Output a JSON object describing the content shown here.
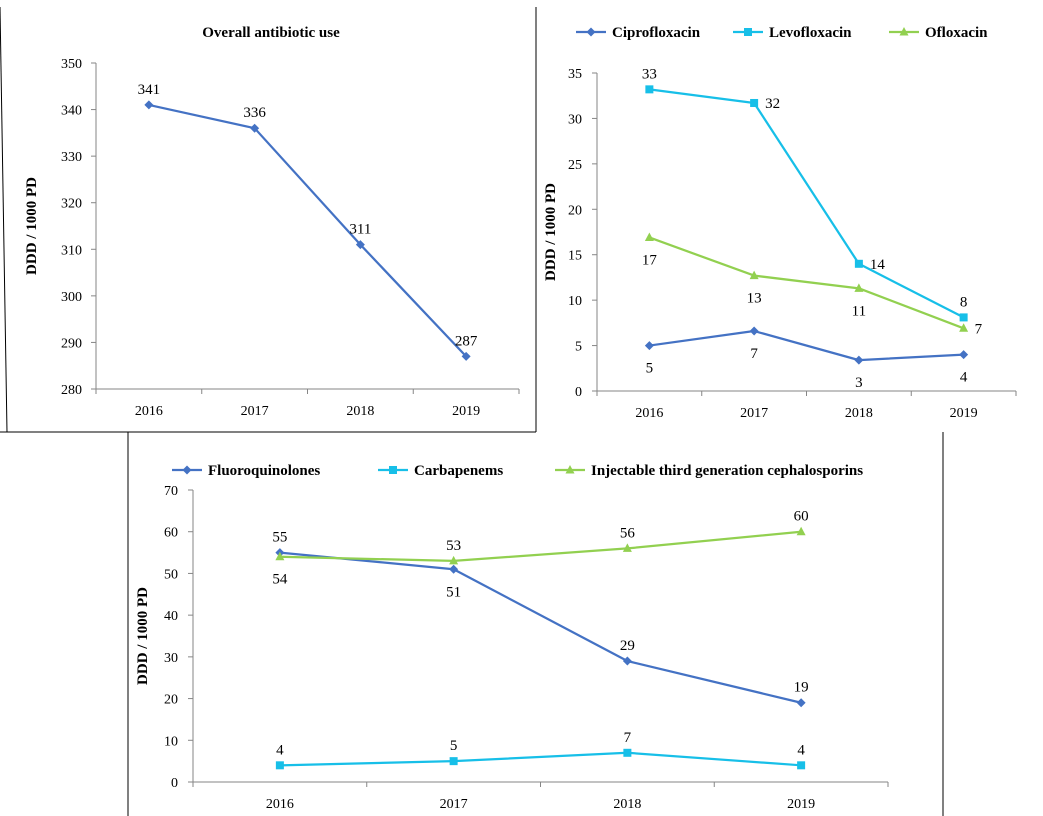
{
  "chart_data": [
    {
      "type": "line",
      "title": "Overall antibiotic use",
      "ylabel": "DDD / 1000 PD",
      "categories": [
        "2016",
        "2017",
        "2018",
        "2019"
      ],
      "ylim": [
        280,
        350
      ],
      "yticks": [
        280,
        290,
        300,
        310,
        320,
        330,
        340,
        350
      ],
      "legend": "none",
      "series": [
        {
          "name": "",
          "color": "#4472C4",
          "marker": "diamond",
          "values": [
            341,
            336,
            311,
            287
          ],
          "labels": [
            "341",
            "336",
            "311",
            "287"
          ],
          "label_pos": [
            "above",
            "above",
            "above",
            "above"
          ]
        }
      ]
    },
    {
      "type": "line",
      "title": "",
      "ylabel": "DDD / 1000 PD",
      "categories": [
        "2016",
        "2017",
        "2018",
        "2019"
      ],
      "ylim": [
        0,
        35
      ],
      "yticks": [
        0,
        5,
        10,
        15,
        20,
        25,
        30,
        35
      ],
      "legend": "top",
      "series": [
        {
          "name": "Ciprofloxacin",
          "color": "#4472C4",
          "marker": "diamond",
          "values": [
            5,
            6.6,
            3.4,
            4
          ],
          "labels": [
            "5",
            "7",
            "3",
            "4"
          ],
          "label_pos": [
            "below",
            "below",
            "below",
            "below"
          ]
        },
        {
          "name": "Levofloxacin",
          "color": "#17BFE8",
          "marker": "square",
          "values": [
            33.2,
            31.7,
            14,
            8.1
          ],
          "labels": [
            "33",
            "32",
            "14",
            "8"
          ],
          "label_pos": [
            "above",
            "right",
            "right",
            "above"
          ]
        },
        {
          "name": "Ofloxacin",
          "color": "#92D050",
          "marker": "triangle",
          "values": [
            16.9,
            12.7,
            11.3,
            6.9
          ],
          "labels": [
            "17",
            "13",
            "11",
            "7"
          ],
          "label_pos": [
            "below",
            "below",
            "below",
            "right"
          ]
        }
      ]
    },
    {
      "type": "line",
      "title": "",
      "ylabel": "DDD / 1000 PD",
      "categories": [
        "2016",
        "2017",
        "2018",
        "2019"
      ],
      "ylim": [
        0,
        70
      ],
      "yticks": [
        0,
        10,
        20,
        30,
        40,
        50,
        60,
        70
      ],
      "legend": "top",
      "series": [
        {
          "name": "Fluoroquinolones",
          "color": "#4472C4",
          "marker": "diamond",
          "values": [
            55,
            51,
            29,
            19
          ],
          "labels": [
            "55",
            "51",
            "29",
            "19"
          ],
          "label_pos": [
            "above",
            "below",
            "above",
            "above"
          ]
        },
        {
          "name": "Carbapenems",
          "color": "#17BFE8",
          "marker": "square",
          "values": [
            4,
            5,
            7,
            4
          ],
          "labels": [
            "4",
            "5",
            "7",
            "4"
          ],
          "label_pos": [
            "above",
            "above",
            "above",
            "above"
          ]
        },
        {
          "name": "Injectable third generation cephalosporins",
          "color": "#92D050",
          "marker": "triangle",
          "values": [
            54,
            53,
            56,
            60
          ],
          "labels": [
            "54",
            "53",
            "56",
            "60"
          ],
          "label_pos": [
            "below",
            "above",
            "above",
            "above"
          ]
        }
      ]
    }
  ]
}
